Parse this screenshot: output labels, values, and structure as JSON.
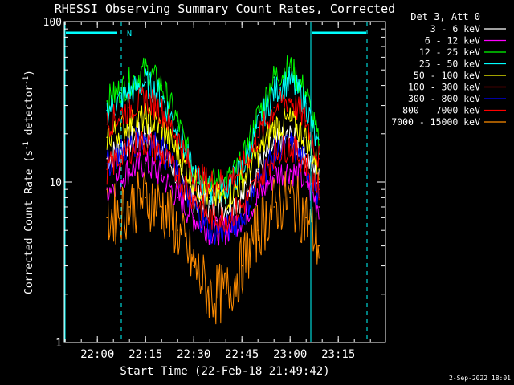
{
  "title": "RHESSI Observing Summary Count Rates, Corrected",
  "xlabel": "Start Time (22-Feb-18 21:49:42)",
  "ylabel": "Corrected Count Rate (s",
  "ylabel_sup1": "-1",
  "ylabel_mid": " detector",
  "ylabel_sup2": "-1",
  "ylabel_end": ")",
  "footer_date": "2-Sep-2022 18:01",
  "legend_title": "Det 3, Att 0",
  "night_flag_label": "N",
  "colors": {
    "background": "#000000",
    "axes": "#ffffff",
    "flag": "#00ffff"
  },
  "chart_data": {
    "type": "line",
    "title": "RHESSI Observing Summary Count Rates, Corrected",
    "xlabel": "Start Time (22-Feb-18 21:49:42)",
    "ylabel": "Corrected Count Rate (s^-1 detector^-1)",
    "yscale": "log",
    "ylim": [
      1,
      100
    ],
    "xlim": [
      "21:49:42",
      "23:29:42"
    ],
    "x_ticks": [
      "22:00",
      "22:15",
      "22:30",
      "22:45",
      "23:00",
      "23:15"
    ],
    "y_ticks": [
      "1",
      "10",
      "100"
    ],
    "x": [
      "22:03",
      "22:10",
      "22:15",
      "22:20",
      "22:25",
      "22:30",
      "22:35",
      "22:40",
      "22:45",
      "22:50",
      "22:55",
      "23:00",
      "23:05",
      "23:09"
    ],
    "series": [
      {
        "name": "3 - 6 keV",
        "color": "#ffffff",
        "values": [
          14,
          18,
          20,
          16,
          11,
          8,
          7,
          7,
          8,
          12,
          17,
          19,
          15,
          10
        ]
      },
      {
        "name": "6 - 12 keV",
        "color": "#ff00ff",
        "values": [
          9,
          12,
          13,
          11,
          8,
          6,
          5,
          5,
          6,
          8,
          11,
          12,
          10,
          7
        ]
      },
      {
        "name": "12 - 25 keV",
        "color": "#00ff00",
        "values": [
          32,
          42,
          50,
          40,
          24,
          12,
          10,
          10,
          13,
          26,
          45,
          52,
          36,
          17
        ]
      },
      {
        "name": "25 - 50 keV",
        "color": "#00ffff",
        "values": [
          28,
          36,
          42,
          34,
          21,
          11,
          9,
          9,
          12,
          22,
          37,
          43,
          31,
          15
        ]
      },
      {
        "name": "50 - 100 keV",
        "color": "#ffff00",
        "values": [
          19,
          23,
          25,
          22,
          15,
          10,
          8,
          8,
          10,
          15,
          22,
          24,
          19,
          12
        ]
      },
      {
        "name": "100 - 300 keV",
        "color": "#ff0000",
        "values": [
          23,
          29,
          33,
          28,
          19,
          11,
          10,
          10,
          12,
          19,
          29,
          33,
          24,
          14
        ]
      },
      {
        "name": "300 - 800 keV",
        "color": "#0000ff",
        "values": [
          13,
          17,
          19,
          16,
          11,
          7,
          5,
          5,
          6,
          10,
          15,
          17,
          13,
          8
        ]
      },
      {
        "name": "800 - 7000 keV",
        "color": "#ff0000",
        "values": [
          12,
          16,
          18,
          15,
          11,
          8,
          6,
          6,
          7,
          10,
          15,
          17,
          13,
          9
        ]
      },
      {
        "name": "7000 - 15000 keV",
        "color": "#ff8c00",
        "values": [
          6,
          7,
          8,
          7,
          5,
          3,
          2,
          2,
          3,
          5,
          7,
          8,
          6,
          4
        ]
      }
    ],
    "legend_placement": "top-right",
    "grid": false
  }
}
